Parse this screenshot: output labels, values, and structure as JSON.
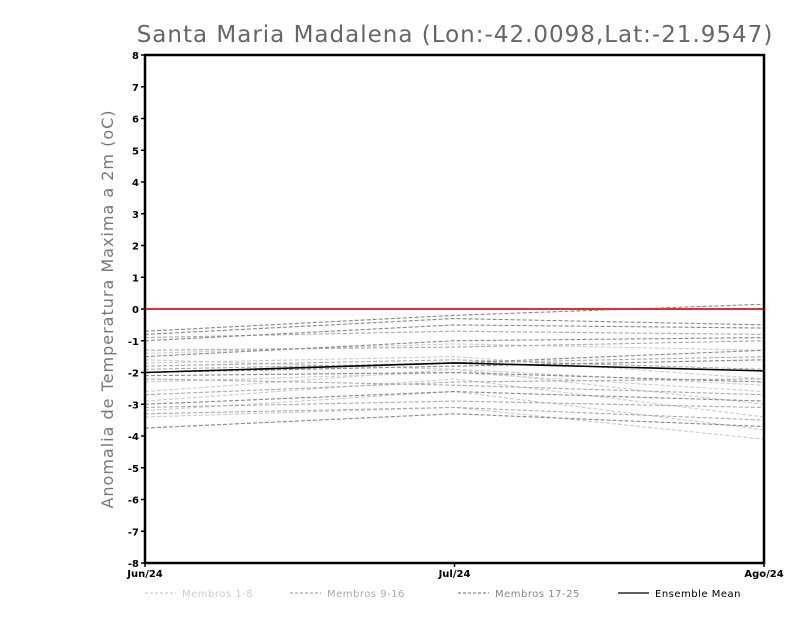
{
  "chart_data": {
    "type": "line",
    "title": "Santa Maria Madalena (Lon:-42.0098,Lat:-21.9547)",
    "xlabel": "",
    "ylabel": "Anomalia de Temperatura Maxima a 2m (oC)",
    "x": [
      "Jun/24",
      "Jul/24",
      "Ago/24"
    ],
    "ylim": [
      -8,
      8
    ],
    "yticks": [
      "8",
      "7",
      "6",
      "5",
      "4",
      "3",
      "2",
      "1",
      "0",
      "-1",
      "-2",
      "-3",
      "-4",
      "-5",
      "-6",
      "-7",
      "-8"
    ],
    "zero_line_color": "#e03030",
    "legend_position": "bottom",
    "groups": [
      {
        "name": "Membros 1-8",
        "color": "#cccccc",
        "members": [
          [
            -1.4,
            -1.1,
            -1.3
          ],
          [
            -1.7,
            -1.5,
            -2.2
          ],
          [
            -2.3,
            -2.0,
            -2.6
          ],
          [
            -2.6,
            -1.9,
            -3.0
          ],
          [
            -2.9,
            -2.2,
            -3.4
          ],
          [
            -3.2,
            -2.6,
            -3.8
          ],
          [
            -1.6,
            -1.9,
            -2.4
          ],
          [
            -3.4,
            -3.1,
            -4.1
          ]
        ]
      },
      {
        "name": "Membros 9-16",
        "color": "#aaaaaa",
        "members": [
          [
            -0.9,
            -0.7,
            -0.8
          ],
          [
            -1.3,
            -1.2,
            -1.0
          ],
          [
            -1.9,
            -1.7,
            -1.5
          ],
          [
            -2.2,
            -2.4,
            -2.7
          ],
          [
            -2.7,
            -2.3,
            -2.2
          ],
          [
            -3.1,
            -2.9,
            -3.1
          ],
          [
            -3.3,
            -3.1,
            -3.5
          ],
          [
            -1.8,
            -1.6,
            -1.9
          ]
        ]
      },
      {
        "name": "Membros 17-25",
        "color": "#888888",
        "members": [
          [
            -0.7,
            -0.2,
            0.15
          ],
          [
            -0.8,
            -0.3,
            -0.5
          ],
          [
            -1.0,
            -0.5,
            -0.6
          ],
          [
            -1.5,
            -1.0,
            -0.9
          ],
          [
            -2.0,
            -1.7,
            -1.3
          ],
          [
            -2.0,
            -1.8,
            -1.6
          ],
          [
            -2.1,
            -2.0,
            -2.3
          ],
          [
            -3.0,
            -2.6,
            -2.9
          ],
          [
            -3.75,
            -3.3,
            -3.7
          ]
        ]
      }
    ],
    "series": [
      {
        "name": "Ensemble Mean",
        "color": "#000000",
        "values": [
          -2.0,
          -1.7,
          -1.95
        ]
      }
    ]
  }
}
